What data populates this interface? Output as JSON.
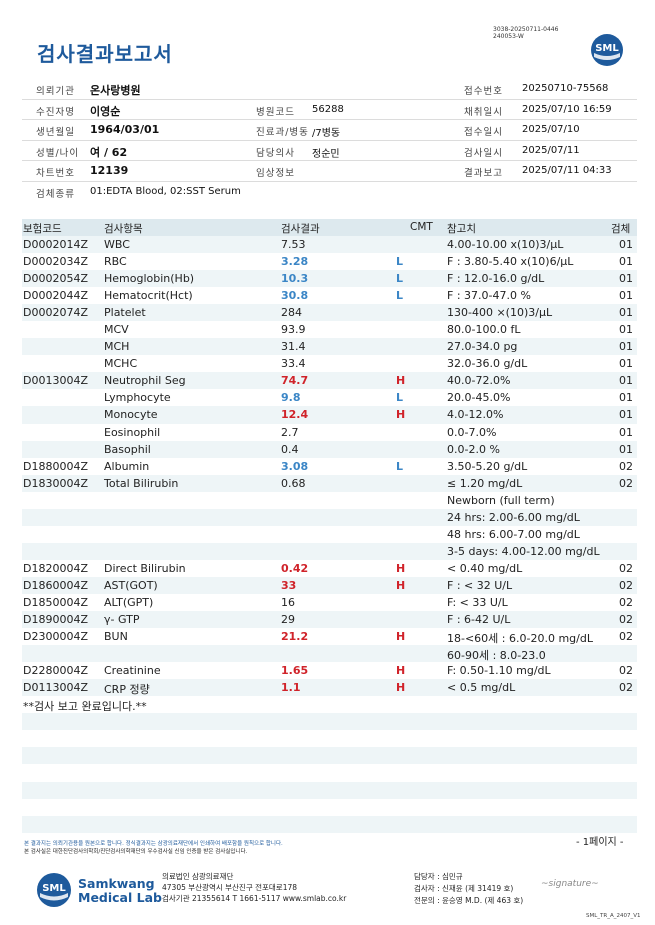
{
  "title": "검사결과보고서",
  "doc_id_line1": "3038-20250711-0446",
  "doc_id_line2": "240053-W",
  "logo_text": "SML",
  "info_rows": [
    {
      "l1": "의뢰기관",
      "v1": "온사랑병원",
      "l2": "",
      "v2": "",
      "l3": "접수번호",
      "v3": "20250710-75568"
    },
    {
      "l1": "수진자명",
      "v1": "이영순",
      "l2": "병원코드",
      "v2": "56288",
      "l3": "채취일시",
      "v3": "2025/07/10 16:59"
    },
    {
      "l1": "생년월일",
      "v1": "1964/03/01",
      "l2": "진료과/병동",
      "v2": "/7병동",
      "l3": "접수일시",
      "v3": "2025/07/10"
    },
    {
      "l1": "성별/나이",
      "v1": "여 / 62",
      "l2": "담당의사",
      "v2": "정순민",
      "l3": "검사일시",
      "v3": "2025/07/11"
    },
    {
      "l1": "차트번호",
      "v1": "12139",
      "l2": "임상정보",
      "v2": "",
      "l3": "결과보고",
      "v3": "2025/07/11 04:33"
    },
    {
      "l1": "검체종류",
      "v1": "01:EDTA Blood, 02:SST Serum",
      "l2": "",
      "v2": "",
      "l3": "",
      "v3": ""
    }
  ],
  "headers": {
    "code": "보험코드",
    "name": "검사항목",
    "result": "검사결과",
    "cmt": "CMT",
    "ref": "참고치",
    "spec": "검체"
  },
  "rows": [
    {
      "code": "D0002014Z",
      "name": "WBC",
      "result": "7.53",
      "flag": "",
      "ref": "4.00-10.00 x(10)3/μL",
      "spec": "01"
    },
    {
      "code": "D0002034Z",
      "name": "RBC",
      "result": "3.28",
      "flag": "L",
      "ref": "F : 3.80-5.40 x(10)6/μL",
      "spec": "01"
    },
    {
      "code": "D0002054Z",
      "name": "Hemoglobin(Hb)",
      "result": "10.3",
      "flag": "L",
      "ref": "F : 12.0-16.0 g/dL",
      "spec": "01"
    },
    {
      "code": "D0002044Z",
      "name": "Hematocrit(Hct)",
      "result": "30.8",
      "flag": "L",
      "ref": "F : 37.0-47.0 %",
      "spec": "01"
    },
    {
      "code": "D0002074Z",
      "name": "Platelet",
      "result": "284",
      "flag": "",
      "ref": "130-400 ×(10)3/μL",
      "spec": "01"
    },
    {
      "code": "",
      "name": "MCV",
      "result": "93.9",
      "flag": "",
      "ref": "80.0-100.0 fL",
      "spec": "01"
    },
    {
      "code": "",
      "name": "MCH",
      "result": "31.4",
      "flag": "",
      "ref": "27.0-34.0 pg",
      "spec": "01"
    },
    {
      "code": "",
      "name": "MCHC",
      "result": "33.4",
      "flag": "",
      "ref": "32.0-36.0 g/dL",
      "spec": "01"
    },
    {
      "code": "D0013004Z",
      "name": "Neutrophil Seg",
      "result": "74.7",
      "flag": "H",
      "ref": "40.0-72.0%",
      "spec": "01"
    },
    {
      "code": "",
      "name": "Lymphocyte",
      "result": "9.8",
      "flag": "L",
      "ref": "20.0-45.0%",
      "spec": "01"
    },
    {
      "code": "",
      "name": "Monocyte",
      "result": "12.4",
      "flag": "H",
      "ref": "4.0-12.0%",
      "spec": "01"
    },
    {
      "code": "",
      "name": "Eosinophil",
      "result": "2.7",
      "flag": "",
      "ref": "0.0-7.0%",
      "spec": "01"
    },
    {
      "code": "",
      "name": "Basophil",
      "result": "0.4",
      "flag": "",
      "ref": "0.0-2.0 %",
      "spec": "01"
    },
    {
      "code": "D1880004Z",
      "name": "Albumin",
      "result": "3.08",
      "flag": "L",
      "ref": "3.50-5.20 g/dL",
      "spec": "02"
    },
    {
      "code": "D1830004Z",
      "name": "Total Bilirubin",
      "result": "0.68",
      "flag": "",
      "ref": "≤ 1.20 mg/dL",
      "spec": "02"
    },
    {
      "code": "",
      "name": "",
      "result": "",
      "flag": "",
      "ref": "Newborn (full term)",
      "spec": ""
    },
    {
      "code": "",
      "name": "",
      "result": "",
      "flag": "",
      "ref": "24 hrs: 2.00-6.00 mg/dL",
      "spec": ""
    },
    {
      "code": "",
      "name": "",
      "result": "",
      "flag": "",
      "ref": "48 hrs: 6.00-7.00 mg/dL",
      "spec": ""
    },
    {
      "code": "",
      "name": "",
      "result": "",
      "flag": "",
      "ref": "3-5 days: 4.00-12.00 mg/dL",
      "spec": ""
    },
    {
      "code": "D1820004Z",
      "name": "Direct Bilirubin",
      "result": "0.42",
      "flag": "H",
      "ref": "< 0.40 mg/dL",
      "spec": "02"
    },
    {
      "code": "D1860004Z",
      "name": "AST(GOT)",
      "result": "33",
      "flag": "H",
      "ref": "F : < 32 U/L",
      "spec": "02"
    },
    {
      "code": "D1850004Z",
      "name": "ALT(GPT)",
      "result": "16",
      "flag": "",
      "ref": "F: < 33 U/L",
      "spec": "02"
    },
    {
      "code": "D1890004Z",
      "name": "γ- GTP",
      "result": "29",
      "flag": "",
      "ref": "F : 6-42 U/L",
      "spec": "02"
    },
    {
      "code": "D2300004Z",
      "name": "BUN",
      "result": "21.2",
      "flag": "H",
      "ref": "18-<60세 : 6.0-20.0 mg/dL",
      "spec": "02"
    },
    {
      "code": "",
      "name": "",
      "result": "",
      "flag": "",
      "ref": "60-90세 : 8.0-23.0",
      "spec": ""
    },
    {
      "code": "D2280004Z",
      "name": "Creatinine",
      "result": "1.65",
      "flag": "H",
      "ref": "F: 0.50-1.10 mg/dL",
      "spec": "02"
    },
    {
      "code": "D0113004Z",
      "name": "CRP 정량",
      "result": "1.1",
      "flag": "H",
      "ref": "< 0.5 mg/dL",
      "spec": "02"
    },
    {
      "code": "**검사 보고 완료입니다.**",
      "name": "",
      "result": "",
      "flag": "",
      "ref": "",
      "spec": ""
    },
    {
      "code": "",
      "name": "",
      "result": "",
      "flag": "",
      "ref": "",
      "spec": ""
    },
    {
      "code": "",
      "name": "",
      "result": "",
      "flag": "",
      "ref": "",
      "spec": ""
    },
    {
      "code": "",
      "name": "",
      "result": "",
      "flag": "",
      "ref": "",
      "spec": ""
    },
    {
      "code": "",
      "name": "",
      "result": "",
      "flag": "",
      "ref": "",
      "spec": ""
    },
    {
      "code": "",
      "name": "",
      "result": "",
      "flag": "",
      "ref": "",
      "spec": ""
    },
    {
      "code": "",
      "name": "",
      "result": "",
      "flag": "",
      "ref": "",
      "spec": ""
    },
    {
      "code": "",
      "name": "",
      "result": "",
      "flag": "",
      "ref": "",
      "spec": ""
    },
    {
      "code": "",
      "name": "",
      "result": "",
      "flag": "",
      "ref": "",
      "spec": ""
    }
  ],
  "footer": {
    "note1": "본 결과지는 의뢰기관용을 원본으로 합니다. 정식결과지는 삼광의료재단에서 인쇄하여 배포함을 원칙으로 합니다.",
    "note2": "본 검사실은 대한진단검사의학회/진단검사의학재단의 우수검사실 신임 인증을 받은 검사실입니다.",
    "page": "- 1페이지 -",
    "brand1": "Samkwang",
    "brand2": "Medical Lab",
    "corp1": "의료법인 삼광의료재단",
    "corp2": "47305 부산광역시 부산진구 전포대로178",
    "corp3": "검사기관 21355614 T 1661-5117 www.smlab.co.kr",
    "staff1": "담당자 : 심민규",
    "staff2": "검사자 : 신재윤 (제 31419 호)",
    "staff3": "전문의 : 윤승영 M.D. (제 463 호)",
    "signature": "~signature~",
    "form_no": "SML_TR_A_2407_V1"
  }
}
